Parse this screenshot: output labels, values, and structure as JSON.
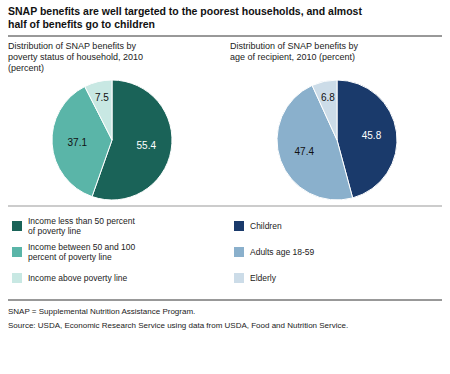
{
  "chart_data": [
    {
      "type": "pie",
      "title": "SNAP benefits are well targeted to the poorest households, and almost\nhalf of benefits go to children",
      "subtitle": "Distribution of SNAP benefits by\npoverty status of household, 2010\n(percent)",
      "categories": [
        "Income less than 50 percent\nof poverty line",
        "Income between 50 and 100\npercent of poverty line",
        "Income above poverty line"
      ],
      "values": [
        55.4,
        37.1,
        7.5
      ],
      "colors": [
        "#1a6358",
        "#5ab5a8",
        "#c8e8e3"
      ],
      "data_labels": true,
      "legend": "bottom",
      "annotations": [
        "SNAP = Supplemental Nutrition Assistance Program.",
        "Source: USDA, Economic Research Service using data from USDA, Food and Nutrition Service."
      ]
    },
    {
      "type": "pie",
      "subtitle": "Distribution of SNAP benefits by\nage of recipient, 2010 (percent)",
      "categories": [
        "Children",
        "Adults age 18-59",
        "Elderly"
      ],
      "values": [
        45.8,
        47.4,
        6.8
      ],
      "colors": [
        "#1a3a6b",
        "#8ab0cc",
        "#ccdce8"
      ],
      "data_labels": true,
      "legend": "bottom"
    }
  ]
}
